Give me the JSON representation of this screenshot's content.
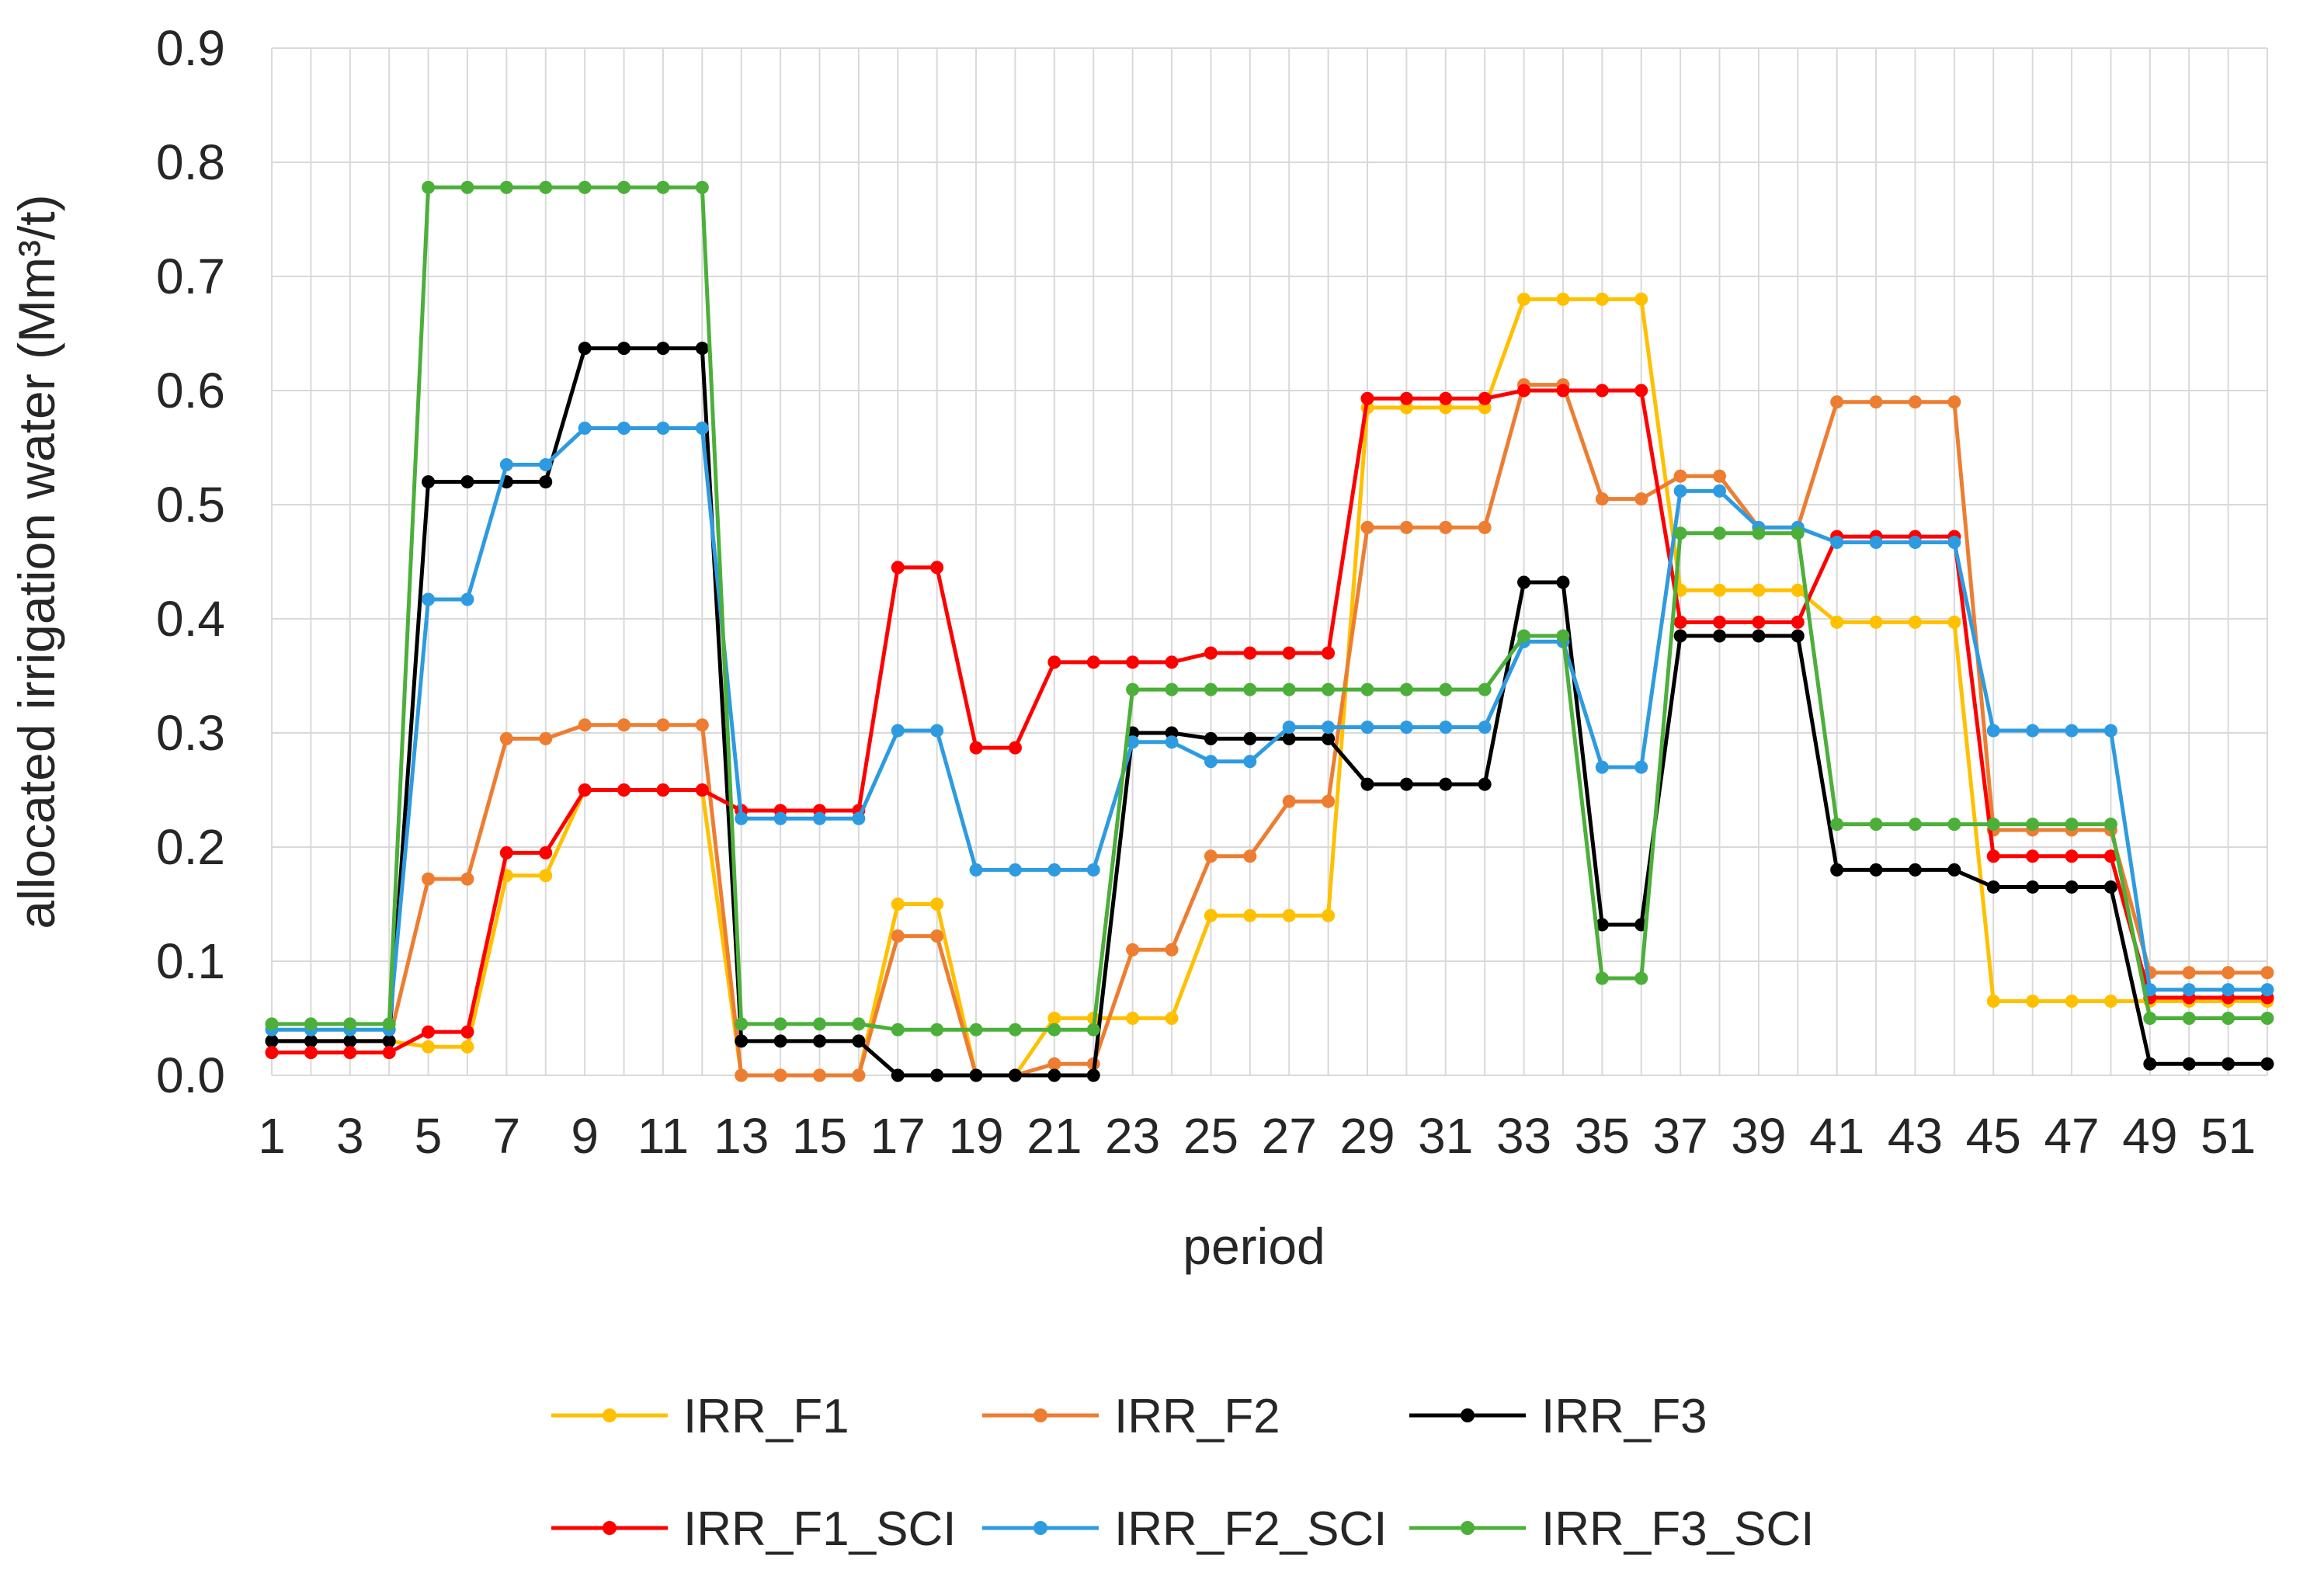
{
  "chart_data": {
    "type": "line",
    "title": "",
    "xlabel": "period",
    "ylabel": "allocated irrigation water (Mm³/t)",
    "ylim": [
      0,
      0.9
    ],
    "xlim": [
      1,
      52
    ],
    "yticks": [
      "0.0",
      "0.1",
      "0.2",
      "0.3",
      "0.4",
      "0.5",
      "0.6",
      "0.7",
      "0.8",
      "0.9"
    ],
    "xticks": [
      "1",
      "3",
      "5",
      "7",
      "9",
      "11",
      "13",
      "15",
      "17",
      "19",
      "21",
      "23",
      "25",
      "27",
      "29",
      "31",
      "33",
      "35",
      "37",
      "39",
      "41",
      "43",
      "45",
      "47",
      "49",
      "51"
    ],
    "grid": true,
    "legend_position": "bottom",
    "x": [
      1,
      2,
      3,
      4,
      5,
      6,
      7,
      8,
      9,
      10,
      11,
      12,
      13,
      14,
      15,
      16,
      17,
      18,
      19,
      20,
      21,
      22,
      23,
      24,
      25,
      26,
      27,
      28,
      29,
      30,
      31,
      32,
      33,
      34,
      35,
      36,
      37,
      38,
      39,
      40,
      41,
      42,
      43,
      44,
      45,
      46,
      47,
      48,
      49,
      50,
      51,
      52
    ],
    "series": [
      {
        "name": "IRR_F1",
        "color": "#FFC000",
        "values": [
          0.03,
          0.03,
          0.03,
          0.03,
          0.025,
          0.025,
          0.175,
          0.175,
          0.25,
          0.25,
          0.25,
          0.25,
          0.0,
          0.0,
          0.0,
          0.0,
          0.15,
          0.15,
          0.0,
          0.0,
          0.05,
          0.05,
          0.05,
          0.05,
          0.14,
          0.14,
          0.14,
          0.14,
          0.585,
          0.585,
          0.585,
          0.585,
          0.68,
          0.68,
          0.68,
          0.68,
          0.425,
          0.425,
          0.425,
          0.425,
          0.397,
          0.397,
          0.397,
          0.397,
          0.065,
          0.065,
          0.065,
          0.065,
          0.065,
          0.065,
          0.065,
          0.065
        ]
      },
      {
        "name": "IRR_F2",
        "color": "#ED7D31",
        "values": [
          0.03,
          0.03,
          0.03,
          0.03,
          0.172,
          0.172,
          0.295,
          0.295,
          0.307,
          0.307,
          0.307,
          0.307,
          0.0,
          0.0,
          0.0,
          0.0,
          0.122,
          0.122,
          0.0,
          0.0,
          0.01,
          0.01,
          0.11,
          0.11,
          0.192,
          0.192,
          0.24,
          0.24,
          0.48,
          0.48,
          0.48,
          0.48,
          0.605,
          0.605,
          0.505,
          0.505,
          0.525,
          0.525,
          0.48,
          0.48,
          0.59,
          0.59,
          0.59,
          0.59,
          0.215,
          0.215,
          0.215,
          0.215,
          0.09,
          0.09,
          0.09,
          0.09
        ]
      },
      {
        "name": "IRR_F3",
        "color": "#000000",
        "values": [
          0.03,
          0.03,
          0.03,
          0.03,
          0.52,
          0.52,
          0.52,
          0.52,
          0.637,
          0.637,
          0.637,
          0.637,
          0.03,
          0.03,
          0.03,
          0.03,
          0.0,
          0.0,
          0.0,
          0.0,
          0.0,
          0.0,
          0.3,
          0.3,
          0.295,
          0.295,
          0.295,
          0.295,
          0.255,
          0.255,
          0.255,
          0.255,
          0.432,
          0.432,
          0.132,
          0.132,
          0.385,
          0.385,
          0.385,
          0.385,
          0.18,
          0.18,
          0.18,
          0.18,
          0.165,
          0.165,
          0.165,
          0.165,
          0.01,
          0.01,
          0.01,
          0.01
        ]
      },
      {
        "name": "IRR_F1_SCI",
        "color": "#FF0000",
        "values": [
          0.02,
          0.02,
          0.02,
          0.02,
          0.038,
          0.038,
          0.195,
          0.195,
          0.25,
          0.25,
          0.25,
          0.25,
          0.232,
          0.232,
          0.232,
          0.232,
          0.445,
          0.445,
          0.287,
          0.287,
          0.362,
          0.362,
          0.362,
          0.362,
          0.37,
          0.37,
          0.37,
          0.37,
          0.593,
          0.593,
          0.593,
          0.593,
          0.6,
          0.6,
          0.6,
          0.6,
          0.397,
          0.397,
          0.397,
          0.397,
          0.472,
          0.472,
          0.472,
          0.472,
          0.192,
          0.192,
          0.192,
          0.192,
          0.068,
          0.068,
          0.068,
          0.068
        ]
      },
      {
        "name": "IRR_F2_SCI",
        "color": "#2E9BE0",
        "values": [
          0.04,
          0.04,
          0.04,
          0.04,
          0.417,
          0.417,
          0.535,
          0.535,
          0.567,
          0.567,
          0.567,
          0.567,
          0.225,
          0.225,
          0.225,
          0.225,
          0.302,
          0.302,
          0.18,
          0.18,
          0.18,
          0.18,
          0.292,
          0.292,
          0.275,
          0.275,
          0.305,
          0.305,
          0.305,
          0.305,
          0.305,
          0.305,
          0.38,
          0.38,
          0.27,
          0.27,
          0.512,
          0.512,
          0.48,
          0.48,
          0.467,
          0.467,
          0.467,
          0.467,
          0.302,
          0.302,
          0.302,
          0.302,
          0.075,
          0.075,
          0.075,
          0.075
        ]
      },
      {
        "name": "IRR_F3_SCI",
        "color": "#4CAF3A",
        "values": [
          0.045,
          0.045,
          0.045,
          0.045,
          0.778,
          0.778,
          0.778,
          0.778,
          0.778,
          0.778,
          0.778,
          0.778,
          0.045,
          0.045,
          0.045,
          0.045,
          0.04,
          0.04,
          0.04,
          0.04,
          0.04,
          0.04,
          0.338,
          0.338,
          0.338,
          0.338,
          0.338,
          0.338,
          0.338,
          0.338,
          0.338,
          0.338,
          0.385,
          0.385,
          0.085,
          0.085,
          0.475,
          0.475,
          0.475,
          0.475,
          0.22,
          0.22,
          0.22,
          0.22,
          0.22,
          0.22,
          0.22,
          0.22,
          0.05,
          0.05,
          0.05,
          0.05
        ]
      }
    ]
  }
}
